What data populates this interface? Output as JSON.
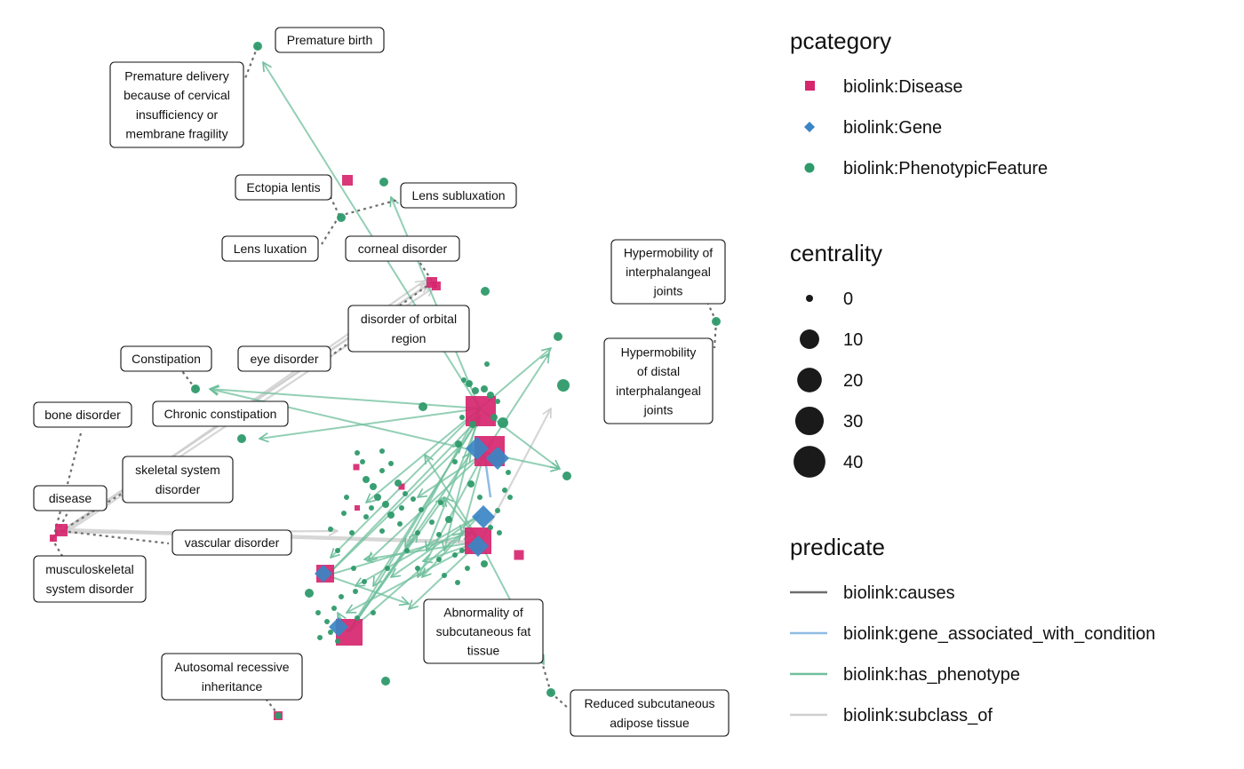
{
  "colors": {
    "disease": "#d6266e",
    "gene": "#3a85c4",
    "phenotype": "#2e9a6a",
    "causes": "#6e6e6e",
    "gene_associated_with_condition": "#8fbbe3",
    "has_phenotype": "#6fbf9c",
    "subclass_of": "#cfcfcf"
  },
  "labels": [
    "Premature birth",
    "Premature delivery\nbecause of cervical\ninsufficiency or\nmembrane fragility",
    "Ectopia lentis",
    "Lens subluxation",
    "Lens luxation",
    "corneal disorder",
    "Hypermobility of\ninterphalangeal\njoints",
    "disorder of orbital\nregion",
    "Constipation",
    "eye disorder",
    "Hypermobility\nof distal\ninterphalangeal\njoints",
    "bone disorder",
    "Chronic constipation",
    "skeletal system\ndisorder",
    "disease",
    "vascular disorder",
    "musculoskeletal\nsystem disorder",
    "Abnormality of\nsubcutaneous fat\ntissue",
    "Autosomal recessive\ninheritance",
    "Reduced subcutaneous\nadipose tissue"
  ],
  "legend": {
    "pcategory": {
      "title": "pcategory",
      "items": [
        {
          "label": "biolink:Disease",
          "shape": "square",
          "color": "#d6266e"
        },
        {
          "label": "biolink:Gene",
          "shape": "diamond",
          "color": "#3a85c4"
        },
        {
          "label": "biolink:PhenotypicFeature",
          "shape": "circle",
          "color": "#2e9a6a"
        }
      ]
    },
    "centrality": {
      "title": "centrality",
      "items": [
        {
          "label": "0",
          "value": 0
        },
        {
          "label": "10",
          "value": 10
        },
        {
          "label": "20",
          "value": 20
        },
        {
          "label": "30",
          "value": 30
        },
        {
          "label": "40",
          "value": 40
        }
      ]
    },
    "predicate": {
      "title": "predicate",
      "items": [
        {
          "label": "biolink:causes",
          "color": "#6e6e6e"
        },
        {
          "label": "biolink:gene_associated_with_condition",
          "color": "#8fbbe3"
        },
        {
          "label": "biolink:has_phenotype",
          "color": "#6fbf9c"
        },
        {
          "label": "biolink:subclass_of",
          "color": "#cfcfcf"
        }
      ]
    }
  }
}
